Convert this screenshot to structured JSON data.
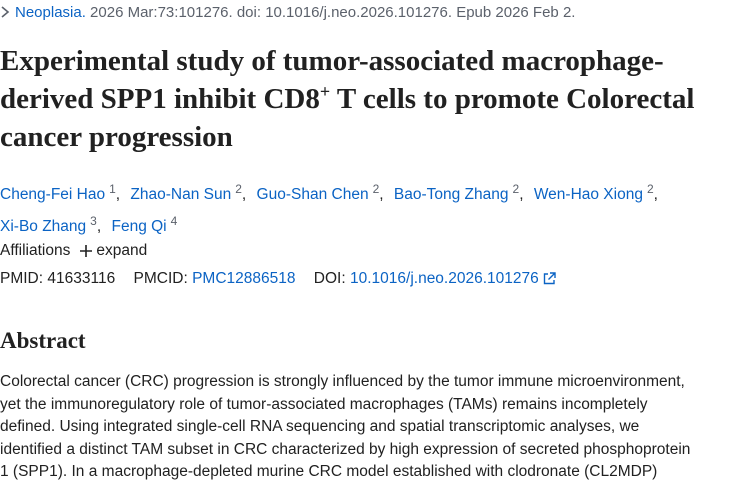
{
  "citation": {
    "journal": "Neoplasia.",
    "details": " 2026 Mar:73:101276. doi: 10.1016/j.neo.2026.101276. Epub 2026 Feb 2."
  },
  "title": {
    "before": "Experimental study of tumor-associated macrophage-derived SPP1 inhibit CD8",
    "sup": "+",
    "after": " T cells to promote Colorectal cancer progression"
  },
  "authors": [
    {
      "name": "Cheng-Fei Hao",
      "aff": "1"
    },
    {
      "name": "Zhao-Nan Sun",
      "aff": "2"
    },
    {
      "name": "Guo-Shan Chen",
      "aff": "2"
    },
    {
      "name": "Bao-Tong Zhang",
      "aff": "2"
    },
    {
      "name": "Wen-Hao Xiong",
      "aff": "2"
    },
    {
      "name": "Xi-Bo Zhang",
      "aff": "3"
    },
    {
      "name": "Feng Qi",
      "aff": "4"
    }
  ],
  "affiliations": {
    "label": "Affiliations",
    "toggle": "expand"
  },
  "ids": {
    "pmid_label": "PMID:",
    "pmid": "41633116",
    "pmcid_label": "PMCID:",
    "pmcid": "PMC12886518",
    "doi_label": "DOI:",
    "doi": "10.1016/j.neo.2026.101276"
  },
  "abstract": {
    "heading": "Abstract",
    "lines": [
      "Colorectal cancer (CRC) progression is strongly influenced by the tumor immune microenvironment,",
      "yet the immunoregulatory role of tumor-associated macrophages (TAMs) remains incompletely",
      "defined. Using integrated single-cell RNA sequencing and spatial transcriptomic analyses, we",
      "identified a distinct TAM subset in CRC characterized by high expression of secreted phosphoprotein",
      "1 (SPP1). In a macrophage-depleted murine CRC model established with clodronate (CL2MDP)"
    ]
  }
}
